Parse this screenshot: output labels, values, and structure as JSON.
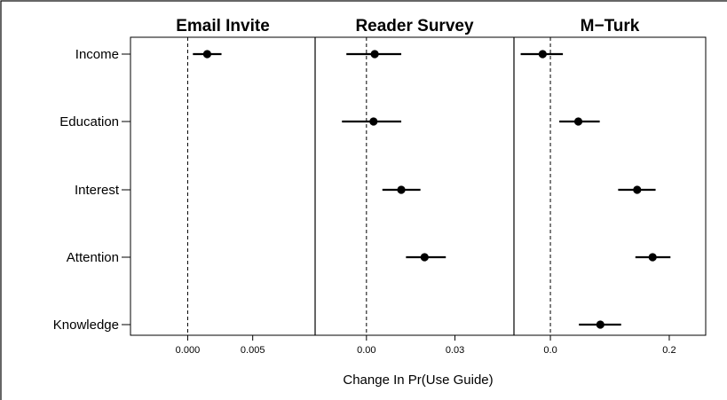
{
  "chart_data": {
    "type": "scatter",
    "xlabel": "Change In Pr(Use Guide)",
    "categories": [
      "Income",
      "Education",
      "Interest",
      "Attention",
      "Knowledge"
    ],
    "panels": [
      {
        "title": "Email Invite",
        "xlim": [
          -0.0044,
          0.0098
        ],
        "ticks": [
          0.0,
          0.005
        ],
        "tick_labels": [
          "0.000",
          "0.005"
        ],
        "points": [
          {
            "category": "Income",
            "estimate": 0.0015,
            "ci": [
              0.0004,
              0.0026
            ]
          }
        ]
      },
      {
        "title": "Reader Survey",
        "xlim": [
          -0.0174,
          0.05
        ],
        "ticks": [
          0.0,
          0.03
        ],
        "tick_labels": [
          "0.00",
          "0.03"
        ],
        "points": [
          {
            "category": "Income",
            "estimate": 0.0028,
            "ci": [
              -0.0068,
              0.0118
            ]
          },
          {
            "category": "Education",
            "estimate": 0.0024,
            "ci": [
              -0.0083,
              0.0118
            ]
          },
          {
            "category": "Interest",
            "estimate": 0.0118,
            "ci": [
              0.0054,
              0.0183
            ]
          },
          {
            "category": "Attention",
            "estimate": 0.0197,
            "ci": [
              0.0134,
              0.0269
            ]
          }
        ]
      },
      {
        "title": "M−Turk",
        "xlim": [
          -0.0613,
          0.2613
        ],
        "ticks": [
          0.0,
          0.2
        ],
        "tick_labels": [
          "0.0",
          "0.2"
        ],
        "points": [
          {
            "category": "Income",
            "estimate": -0.013,
            "ci": [
              -0.05,
              0.021
            ]
          },
          {
            "category": "Education",
            "estimate": 0.047,
            "ci": [
              0.015,
              0.083
            ]
          },
          {
            "category": "Interest",
            "estimate": 0.146,
            "ci": [
              0.114,
              0.177
            ]
          },
          {
            "category": "Attention",
            "estimate": 0.172,
            "ci": [
              0.143,
              0.202
            ]
          },
          {
            "category": "Knowledge",
            "estimate": 0.084,
            "ci": [
              0.048,
              0.119
            ]
          }
        ]
      }
    ],
    "reference_line": 0,
    "grid": false
  }
}
